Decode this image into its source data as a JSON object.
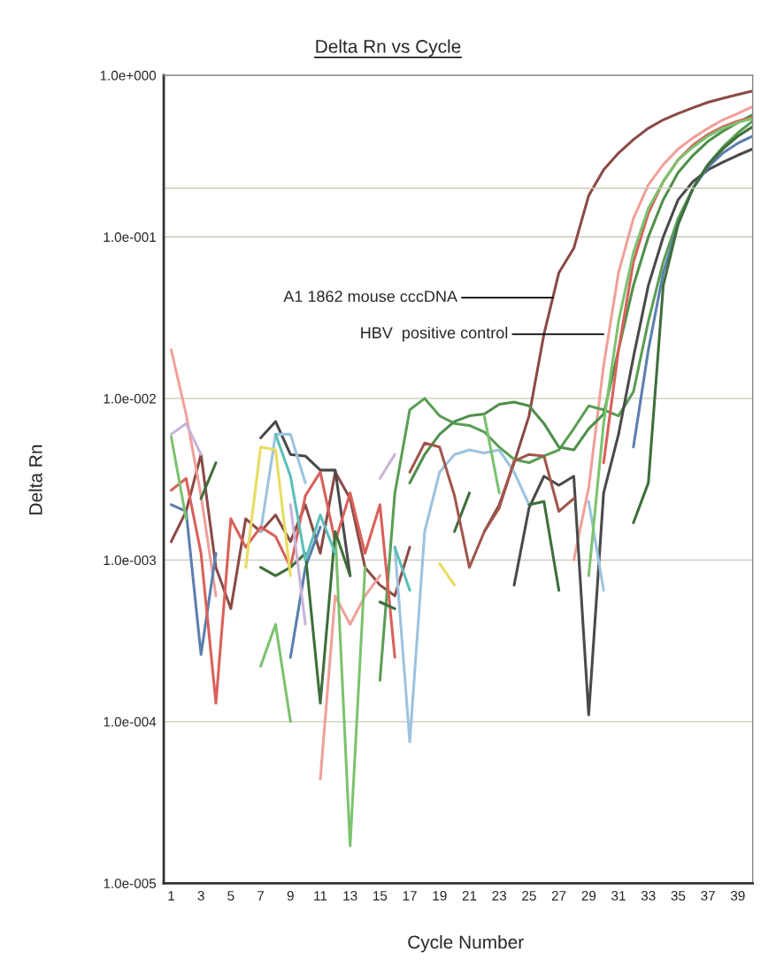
{
  "chart_data": {
    "type": "line",
    "title": "Delta Rn vs Cycle",
    "xlabel": "Cycle Number",
    "ylabel": "Delta Rn",
    "x": [
      1,
      2,
      3,
      4,
      5,
      6,
      7,
      8,
      9,
      10,
      11,
      12,
      13,
      14,
      15,
      16,
      17,
      18,
      19,
      20,
      21,
      22,
      23,
      24,
      25,
      26,
      27,
      28,
      29,
      30,
      31,
      32,
      33,
      34,
      35,
      36,
      37,
      38,
      39,
      40
    ],
    "log": "y",
    "xlim": [
      0.5,
      40
    ],
    "ylim": [
      1e-05,
      1
    ],
    "xticks": [
      1,
      3,
      5,
      7,
      9,
      11,
      13,
      15,
      17,
      19,
      21,
      23,
      25,
      27,
      29,
      31,
      33,
      35,
      37,
      39
    ],
    "yticks": [
      {
        "value": 1e-05,
        "label": "1.0e-005"
      },
      {
        "value": 0.0001,
        "label": "1.0e-004"
      },
      {
        "value": 0.001,
        "label": "1.0e-003"
      },
      {
        "value": 0.01,
        "label": "1.0e-002"
      },
      {
        "value": 0.1,
        "label": "1.0e-001"
      },
      {
        "value": 1,
        "label": "1.0e+000"
      }
    ],
    "grid": "y",
    "legend": false,
    "marker": "none",
    "line_style": "solid",
    "ref_lines": [
      {
        "axis": "y",
        "value": 0.2,
        "label": null,
        "color": "#c8c8b8"
      }
    ],
    "annotations": [
      {
        "text": "A1 1862 mouse cccDNA",
        "x": 26.6,
        "y": 0.042
      },
      {
        "text": "HBV  positive control",
        "x": 30,
        "y": 0.025
      }
    ],
    "series": [
      {
        "color": "#8b4a45",
        "values": [
          0.0013,
          0.002,
          0.0045,
          0.0009,
          0.0005,
          0.0018,
          0.0015,
          0.0019,
          0.0013,
          0.0022,
          0.0011,
          0.0035,
          0.0024,
          0.0009,
          0.0007,
          0.0006,
          0.0012,
          null,
          null,
          null,
          null,
          0.0015,
          0.0022,
          0.004,
          0.0078,
          0.025,
          0.06,
          0.085,
          0.18,
          0.26,
          0.33,
          0.4,
          0.47,
          0.53,
          0.58,
          0.63,
          0.68,
          0.72,
          0.76,
          0.8
        ]
      },
      {
        "color": "#f0a09a",
        "values": [
          0.02,
          0.008,
          0.0025,
          0.0006,
          null,
          null,
          null,
          null,
          null,
          null,
          4.4e-05,
          0.0006,
          0.0004,
          0.0006,
          0.0008,
          null,
          null,
          null,
          null,
          null,
          null,
          null,
          null,
          null,
          null,
          null,
          null,
          0.001,
          0.0028,
          0.016,
          0.06,
          0.13,
          0.21,
          0.28,
          0.35,
          0.41,
          0.47,
          0.53,
          0.58,
          0.64
        ]
      },
      {
        "color": "#5a9e55",
        "values": [
          null,
          null,
          null,
          null,
          null,
          null,
          null,
          null,
          null,
          null,
          null,
          null,
          null,
          null,
          0.00018,
          0.0026,
          0.0085,
          0.01,
          0.0078,
          0.007,
          0.0068,
          0.0062,
          0.005,
          0.0042,
          0.004,
          0.0044,
          0.0048,
          0.0065,
          0.009,
          0.0085,
          0.0078,
          0.011,
          0.03,
          0.07,
          0.13,
          0.2,
          0.28,
          0.36,
          0.44,
          0.52
        ]
      },
      {
        "color": "#4f8f4a",
        "values": [
          null,
          null,
          null,
          null,
          null,
          null,
          null,
          null,
          null,
          null,
          null,
          null,
          null,
          null,
          null,
          null,
          0.003,
          0.0045,
          0.006,
          0.0072,
          0.0078,
          0.008,
          0.0092,
          0.0095,
          0.009,
          0.007,
          0.005,
          0.0048,
          0.0065,
          0.008,
          0.02,
          0.05,
          0.1,
          0.17,
          0.25,
          0.32,
          0.39,
          0.45,
          0.51,
          0.57
        ]
      },
      {
        "color": "#4a4a4a",
        "values": [
          null,
          null,
          null,
          null,
          null,
          null,
          0.0057,
          0.0072,
          0.0045,
          0.0044,
          0.0036,
          0.0036,
          0.0008,
          null,
          null,
          null,
          null,
          null,
          null,
          null,
          null,
          null,
          null,
          0.0007,
          0.0021,
          0.0033,
          0.0029,
          0.0033,
          0.00011,
          0.0026,
          0.006,
          0.018,
          0.05,
          0.1,
          0.17,
          0.22,
          0.26,
          0.29,
          0.32,
          0.35
        ]
      },
      {
        "color": "#9cc3e0",
        "values": [
          null,
          null,
          null,
          null,
          null,
          null,
          0.0015,
          0.006,
          0.006,
          0.003,
          null,
          null,
          null,
          null,
          null,
          0.0012,
          7.5e-05,
          0.0015,
          0.0035,
          0.0045,
          0.0048,
          0.0046,
          0.0048,
          0.0035,
          0.0022,
          null,
          null,
          null,
          0.0023,
          0.00065,
          null,
          null,
          null,
          null,
          null,
          null,
          null,
          null,
          null,
          null
        ]
      },
      {
        "color": "#5b7fae",
        "values": [
          0.0022,
          0.002,
          0.00026,
          0.0011,
          null,
          null,
          null,
          null,
          0.00025,
          0.0009,
          0.0016,
          null,
          null,
          null,
          null,
          null,
          null,
          null,
          null,
          null,
          null,
          null,
          null,
          null,
          null,
          null,
          null,
          null,
          null,
          null,
          null,
          0.005,
          0.02,
          0.06,
          0.12,
          0.2,
          0.27,
          0.33,
          0.38,
          0.42
        ]
      },
      {
        "color": "#d9605a",
        "values": [
          0.0027,
          0.0032,
          0.0011,
          0.00013,
          0.0018,
          0.0012,
          0.0016,
          0.0014,
          0.0009,
          0.0025,
          0.0035,
          0.0013,
          0.0026,
          0.0011,
          0.0022,
          0.00025,
          null,
          null,
          null,
          null,
          null,
          null,
          null,
          null,
          null,
          null,
          null,
          null,
          null,
          0.004,
          0.02,
          0.07,
          0.14,
          0.22,
          0.3,
          0.37,
          0.43,
          0.48,
          0.52,
          0.55
        ]
      },
      {
        "color": "#7cc26f",
        "values": [
          0.0058,
          0.0018,
          null,
          null,
          null,
          null,
          0.00022,
          0.0004,
          0.0001,
          null,
          null,
          0.0015,
          1.7e-05,
          0.0009,
          null,
          null,
          null,
          null,
          null,
          null,
          null,
          0.0078,
          0.0026,
          null,
          null,
          null,
          null,
          null,
          0.0008,
          0.007,
          0.03,
          0.08,
          0.15,
          0.22,
          0.3,
          0.36,
          0.42,
          0.47,
          0.51,
          0.54
        ]
      },
      {
        "color": "#3f6e3c",
        "values": [
          null,
          null,
          0.0024,
          0.004,
          null,
          null,
          0.0009,
          0.0008,
          0.0009,
          0.0011,
          0.00013,
          0.0015,
          0.0008,
          null,
          0.00055,
          0.0005,
          null,
          null,
          null,
          0.0015,
          0.0026,
          null,
          null,
          null,
          0.0022,
          0.0023,
          0.00065,
          null,
          null,
          null,
          null,
          0.0017,
          0.003,
          0.05,
          0.12,
          0.2,
          0.28,
          0.35,
          0.42,
          0.48
        ]
      },
      {
        "color": "#a0564d",
        "values": [
          null,
          null,
          null,
          null,
          null,
          null,
          null,
          null,
          null,
          null,
          null,
          null,
          null,
          null,
          null,
          null,
          0.0035,
          0.0053,
          0.005,
          0.0025,
          0.0009,
          0.0015,
          0.0021,
          0.0041,
          0.0045,
          0.0044,
          0.002,
          0.0024,
          null,
          null,
          null,
          null,
          null,
          null,
          null,
          null,
          null,
          null,
          null,
          null
        ]
      },
      {
        "color": "#e8dc60",
        "values": [
          null,
          null,
          null,
          null,
          null,
          0.0009,
          0.005,
          0.0048,
          0.0008,
          null,
          null,
          null,
          null,
          null,
          null,
          null,
          null,
          null,
          0.00095,
          0.0007,
          null,
          null,
          null,
          null,
          null,
          null,
          null,
          null,
          null,
          null,
          null,
          null,
          null,
          null,
          null,
          null,
          null,
          null,
          null,
          null
        ]
      },
      {
        "color": "#c8b4d8",
        "values": [
          0.006,
          0.007,
          0.0045,
          null,
          null,
          null,
          null,
          null,
          0.0022,
          0.0004,
          null,
          null,
          null,
          null,
          0.0032,
          0.0045,
          null,
          null,
          null,
          null,
          null,
          null,
          null,
          null,
          null,
          null,
          null,
          null,
          null,
          null,
          null,
          null,
          null,
          null,
          null,
          null,
          null,
          null,
          null,
          null
        ]
      },
      {
        "color": "#5cbfb8",
        "values": [
          null,
          null,
          null,
          null,
          null,
          null,
          null,
          0.006,
          0.0033,
          0.001,
          0.0019,
          0.0011,
          null,
          null,
          null,
          0.0012,
          0.00065,
          null,
          null,
          null,
          null,
          null,
          null,
          null,
          null,
          null,
          null,
          null,
          null,
          null,
          null,
          null,
          null,
          null,
          null,
          null,
          null,
          null,
          null,
          null
        ]
      }
    ]
  }
}
